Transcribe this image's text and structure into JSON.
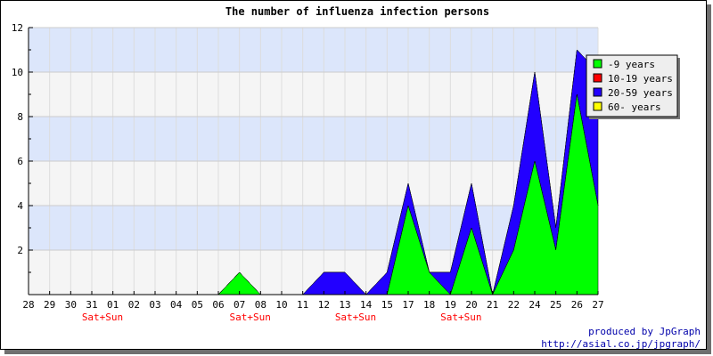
{
  "chart_data": {
    "type": "area",
    "title": "The number of influenza infection persons",
    "x": [
      "28",
      "29",
      "30",
      "31",
      "01",
      "02",
      "03",
      "04",
      "05",
      "06",
      "07",
      "08",
      "10",
      "11",
      "12",
      "13",
      "14",
      "15",
      "17",
      "18",
      "19",
      "20",
      "21",
      "22",
      "24",
      "25",
      "26",
      "27"
    ],
    "weekend_markers": [
      {
        "x": "31",
        "text": "Sat+Sun"
      },
      {
        "x": "07",
        "text": "Sat+Sun"
      },
      {
        "x": "13",
        "text": "Sat+Sun"
      },
      {
        "x": "19",
        "text": "Sat+Sun"
      }
    ],
    "stacked": true,
    "series": [
      {
        "name": "-9 years",
        "color": "#00ff00",
        "values": [
          0,
          0,
          0,
          0,
          0,
          0,
          0,
          0,
          0,
          0,
          1,
          0,
          0,
          0,
          0,
          0,
          0,
          0,
          4,
          1,
          0,
          3,
          0,
          2,
          6,
          2,
          9,
          4
        ]
      },
      {
        "name": "10-19 years",
        "color": "#ff0000",
        "values": [
          0,
          0,
          0,
          0,
          0,
          0,
          0,
          0,
          0,
          0,
          0,
          0,
          0,
          0,
          0,
          0,
          0,
          0,
          0,
          0,
          0,
          0,
          0,
          0,
          0,
          0,
          0,
          0
        ]
      },
      {
        "name": "20-59 years",
        "color": "#2200ff",
        "values": [
          0,
          0,
          0,
          0,
          0,
          0,
          0,
          0,
          0,
          0,
          0,
          0,
          0,
          0,
          1,
          1,
          0,
          1,
          1,
          0,
          1,
          2,
          0,
          2,
          4,
          1,
          2,
          6
        ]
      },
      {
        "name": "60- years",
        "color": "#ffff00",
        "values": [
          0,
          0,
          0,
          0,
          0,
          0,
          0,
          0,
          0,
          0,
          0,
          0,
          0,
          0,
          0,
          0,
          0,
          0,
          0,
          0,
          0,
          0,
          0,
          0,
          0,
          0,
          0,
          0
        ]
      }
    ],
    "ylim": [
      0,
      12
    ],
    "yticks": [
      2,
      4,
      6,
      8,
      10,
      12
    ],
    "grid": true,
    "band_colors": [
      "#f5f5f5",
      "#dce6fb"
    ],
    "weekend_color": "#ff0000",
    "legend_position": "top-right"
  },
  "credit": {
    "line1": "produced by JpGraph",
    "line2": "http://asial.co.jp/jpgraph/",
    "color": "#0000aa"
  }
}
